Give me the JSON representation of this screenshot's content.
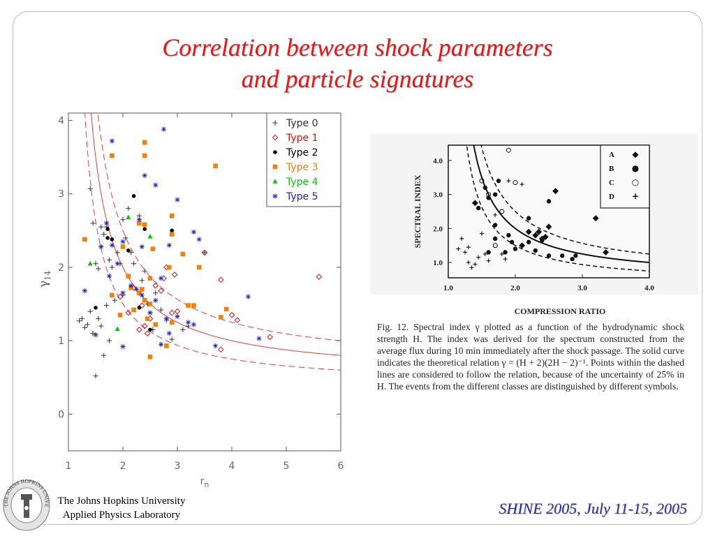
{
  "slide": {
    "title_line1": "Correlation between shock parameters",
    "title_line2": "and particle signatures",
    "footer_institution_line1": "The Johns Hopkins University",
    "footer_institution_line2": "Applied Physics Laboratory",
    "footer_event": "SHINE 2005, July 11-15, 2005",
    "logo_text": "THE JOHNS HOPKINS UNIVERSITY"
  },
  "colors": {
    "title": "#e01a1a",
    "frame": "#b7b7e6",
    "footer_event": "#29308a",
    "curve": "#e33c3c"
  },
  "chart_data": [
    {
      "type": "scatter",
      "xlabel": "r_n",
      "ylabel": "γ14",
      "xlim": [
        1,
        6
      ],
      "ylim": [
        -0.5,
        4.1
      ],
      "xticks": [
        "1",
        "2",
        "3",
        "4",
        "5",
        "6"
      ],
      "yticks": [
        "0",
        "1",
        "2",
        "3",
        "4"
      ],
      "grid": false,
      "legend_position": "top-right",
      "curves": [
        {
          "style": "solid",
          "relation": "(x+2)/(2x-2)"
        },
        {
          "style": "dashed",
          "relation": "1.25*(x+2)/(2x-2)"
        },
        {
          "style": "dashed",
          "relation": "0.75*(x+2)/(2x-2)"
        }
      ],
      "series": [
        {
          "name": "Type 0",
          "marker": "plus",
          "color": "#303030",
          "points": [
            [
              1.2,
              1.27
            ],
            [
              1.25,
              1.3
            ],
            [
              1.3,
              1.18
            ],
            [
              1.35,
              1.22
            ],
            [
              1.4,
              1.4
            ],
            [
              1.45,
              1.1
            ],
            [
              1.5,
              0.52
            ],
            [
              1.55,
              1.3
            ],
            [
              1.6,
              1.2
            ],
            [
              1.65,
              0.8
            ],
            [
              1.7,
              1.48
            ],
            [
              1.75,
              1.0
            ],
            [
              1.4,
              3.07
            ],
            [
              1.5,
              2.05
            ],
            [
              1.6,
              2.55
            ],
            [
              1.65,
              2.45
            ],
            [
              1.7,
              2.55
            ],
            [
              1.75,
              2.1
            ],
            [
              1.8,
              2.0
            ],
            [
              1.9,
              2.2
            ],
            [
              1.95,
              2.05
            ],
            [
              2.0,
              2.65
            ],
            [
              2.05,
              2.4
            ],
            [
              2.1,
              2.8
            ],
            [
              2.15,
              2.2
            ],
            [
              2.2,
              2.05
            ],
            [
              2.3,
              2.7
            ],
            [
              2.4,
              1.95
            ],
            [
              2.45,
              1.5
            ],
            [
              2.5,
              1.38
            ],
            [
              2.55,
              1.15
            ],
            [
              2.6,
              1.65
            ],
            [
              2.7,
              1.42
            ],
            [
              2.8,
              1.28
            ],
            [
              2.9,
              1.02
            ],
            [
              3.1,
              1.15
            ],
            [
              3.2,
              1.2
            ],
            [
              3.5,
              2.2
            ],
            [
              1.55,
              1.98
            ],
            [
              1.6,
              2.28
            ],
            [
              1.45,
              2.6
            ],
            [
              2.35,
              1.82
            ],
            [
              2.0,
              1.62
            ],
            [
              1.85,
              1.55
            ]
          ]
        },
        {
          "name": "Type 1",
          "marker": "diamond",
          "color": "#e01010",
          "points": [
            [
              1.95,
              1.6
            ],
            [
              2.1,
              1.38
            ],
            [
              2.2,
              1.72
            ],
            [
              2.3,
              1.15
            ],
            [
              2.35,
              1.48
            ],
            [
              2.4,
              1.2
            ],
            [
              2.45,
              1.1
            ],
            [
              2.5,
              1.3
            ],
            [
              2.6,
              1.75
            ],
            [
              2.7,
              1.68
            ],
            [
              2.75,
              1.85
            ],
            [
              2.8,
              2.0
            ],
            [
              2.9,
              1.38
            ],
            [
              2.95,
              1.9
            ],
            [
              3.0,
              1.4
            ],
            [
              3.5,
              2.2
            ],
            [
              3.8,
              1.83
            ],
            [
              3.8,
              0.88
            ],
            [
              4.0,
              1.35
            ],
            [
              4.1,
              1.28
            ],
            [
              4.7,
              1.05
            ],
            [
              5.6,
              1.87
            ]
          ]
        },
        {
          "name": "Type 2",
          "marker": "dot",
          "color": "#000000",
          "points": [
            [
              1.5,
              1.45
            ],
            [
              1.72,
              2.52
            ],
            [
              1.72,
              2.4
            ],
            [
              1.8,
              2.38
            ],
            [
              2.1,
              2.23
            ],
            [
              2.2,
              2.97
            ],
            [
              2.3,
              1.45
            ],
            [
              2.4,
              2.52
            ],
            [
              2.5,
              1.15
            ],
            [
              2.6,
              1.22
            ],
            [
              2.9,
              2.5
            ]
          ]
        },
        {
          "name": "Type 3",
          "marker": "square",
          "color": "#f08010",
          "points": [
            [
              1.3,
              2.38
            ],
            [
              1.8,
              3.52
            ],
            [
              1.8,
              1.62
            ],
            [
              1.95,
              1.35
            ],
            [
              2.0,
              2.28
            ],
            [
              2.1,
              1.88
            ],
            [
              2.15,
              1.72
            ],
            [
              2.2,
              1.42
            ],
            [
              2.3,
              1.65
            ],
            [
              2.3,
              2.6
            ],
            [
              2.35,
              1.7
            ],
            [
              2.4,
              1.55
            ],
            [
              2.4,
              2.58
            ],
            [
              2.4,
              3.7
            ],
            [
              2.4,
              3.52
            ],
            [
              2.45,
              1.3
            ],
            [
              2.5,
              1.85
            ],
            [
              2.5,
              1.5
            ],
            [
              2.5,
              0.78
            ],
            [
              2.55,
              2.25
            ],
            [
              2.6,
              1.22
            ],
            [
              2.8,
              0.93
            ],
            [
              2.85,
              2.0
            ],
            [
              2.9,
              2.45
            ],
            [
              2.9,
              2.7
            ],
            [
              2.9,
              1.25
            ],
            [
              3.1,
              2.18
            ],
            [
              3.2,
              1.48
            ],
            [
              3.3,
              1.48
            ],
            [
              3.4,
              2.0
            ],
            [
              3.7,
              3.38
            ],
            [
              3.8,
              1.32
            ],
            [
              3.9,
              1.43
            ]
          ]
        },
        {
          "name": "Type 4",
          "marker": "triangle",
          "color": "#10c010",
          "points": [
            [
              1.4,
              2.05
            ],
            [
              1.9,
              1.16
            ],
            [
              2.1,
              2.68
            ],
            [
              2.5,
              2.42
            ]
          ]
        },
        {
          "name": "Type 5",
          "marker": "asterisk",
          "color": "#2020c0",
          "points": [
            [
              1.3,
              1.68
            ],
            [
              1.5,
              1.08
            ],
            [
              1.6,
              2.28
            ],
            [
              1.7,
              2.6
            ],
            [
              1.75,
              1.88
            ],
            [
              1.8,
              3.72
            ],
            [
              1.8,
              2.3
            ],
            [
              1.9,
              2.05
            ],
            [
              2.0,
              2.35
            ],
            [
              2.0,
              1.65
            ],
            [
              2.0,
              0.92
            ],
            [
              2.15,
              1.75
            ],
            [
              2.25,
              1.7
            ],
            [
              2.3,
              2.65
            ],
            [
              2.35,
              1.62
            ],
            [
              2.35,
              2.28
            ],
            [
              2.4,
              3.25
            ],
            [
              2.5,
              1.38
            ],
            [
              2.6,
              3.12
            ],
            [
              2.6,
              1.55
            ],
            [
              2.7,
              0.95
            ],
            [
              2.7,
              1.85
            ],
            [
              2.75,
              3.88
            ],
            [
              2.8,
              1.3
            ],
            [
              2.85,
              1.1
            ],
            [
              2.85,
              2.3
            ],
            [
              3.0,
              1.33
            ],
            [
              3.0,
              2.92
            ],
            [
              3.2,
              1.25
            ],
            [
              3.3,
              1.22
            ],
            [
              3.3,
              2.48
            ],
            [
              3.4,
              2.38
            ],
            [
              3.7,
              0.93
            ],
            [
              4.3,
              1.6
            ],
            [
              4.5,
              1.03
            ]
          ]
        }
      ]
    }
  ],
  "scanned_figure": {
    "ylabel": "SPECTRAL INDEX",
    "xlabel": "COMPRESSION RATIO",
    "yticks": [
      "4.0",
      "3.0",
      "2.0",
      "1.0"
    ],
    "xticks": [
      "1.0",
      "2.0",
      "3.0",
      "4.0"
    ],
    "legend": [
      {
        "label": "A",
        "symbol": "◆"
      },
      {
        "label": "B",
        "symbol": "●"
      },
      {
        "label": "C",
        "symbol": "○"
      },
      {
        "label": "D",
        "symbol": "+"
      }
    ],
    "caption": "Fig. 12. Spectral index γ plotted as a function of the hydrodynamic shock strength H. The index was derived for the spectrum constructed from the average flux during 10 min immediately after the shock passage. The solid curve indicates the theoretical relation γ = (H + 2)(2H − 2)⁻¹. Points within the dashed lines are considered to follow the relation, because of the uncertainty of 25% in H. The events from the different classes are distinguished by different symbols.",
    "points": {
      "A": [
        [
          1.4,
          2.75
        ],
        [
          2.1,
          1.5
        ],
        [
          2.2,
          1.9
        ],
        [
          2.3,
          1.8
        ],
        [
          2.35,
          1.9
        ],
        [
          2.4,
          1.7
        ],
        [
          2.45,
          1.75
        ],
        [
          2.5,
          2.05
        ],
        [
          2.6,
          3.1
        ],
        [
          3.2,
          2.3
        ],
        [
          3.35,
          1.3
        ]
      ],
      "B": [
        [
          1.45,
          2.6
        ],
        [
          1.55,
          3.2
        ],
        [
          1.6,
          2.9
        ],
        [
          1.6,
          1.3
        ],
        [
          1.7,
          3.0
        ],
        [
          1.7,
          2.1
        ],
        [
          1.7,
          1.7
        ],
        [
          1.75,
          3.4
        ],
        [
          1.85,
          1.3
        ],
        [
          1.9,
          1.8
        ],
        [
          1.95,
          1.6
        ],
        [
          2.0,
          1.4
        ],
        [
          2.2,
          1.6
        ],
        [
          2.2,
          2.3
        ],
        [
          2.3,
          1.35
        ],
        [
          2.4,
          1.65
        ],
        [
          2.5,
          2.8
        ],
        [
          2.5,
          1.2
        ],
        [
          2.7,
          1.2
        ],
        [
          2.85,
          1.1
        ],
        [
          2.9,
          1.2
        ]
      ],
      "C": [
        [
          1.5,
          3.4
        ],
        [
          1.6,
          3.0
        ],
        [
          1.8,
          2.5
        ],
        [
          1.9,
          4.3
        ],
        [
          2.0,
          3.35
        ],
        [
          1.7,
          1.5
        ]
      ],
      "D": [
        [
          1.15,
          1.4
        ],
        [
          1.2,
          1.7
        ],
        [
          1.25,
          1.3
        ],
        [
          1.3,
          1.0
        ],
        [
          1.3,
          1.45
        ],
        [
          1.35,
          0.85
        ],
        [
          1.4,
          0.95
        ],
        [
          1.45,
          1.15
        ],
        [
          1.5,
          1.85
        ],
        [
          1.55,
          1.25
        ],
        [
          1.6,
          1.05
        ],
        [
          1.7,
          2.4
        ],
        [
          1.8,
          1.25
        ],
        [
          1.85,
          1.1
        ],
        [
          1.9,
          3.4
        ],
        [
          2.1,
          3.3
        ]
      ]
    }
  }
}
